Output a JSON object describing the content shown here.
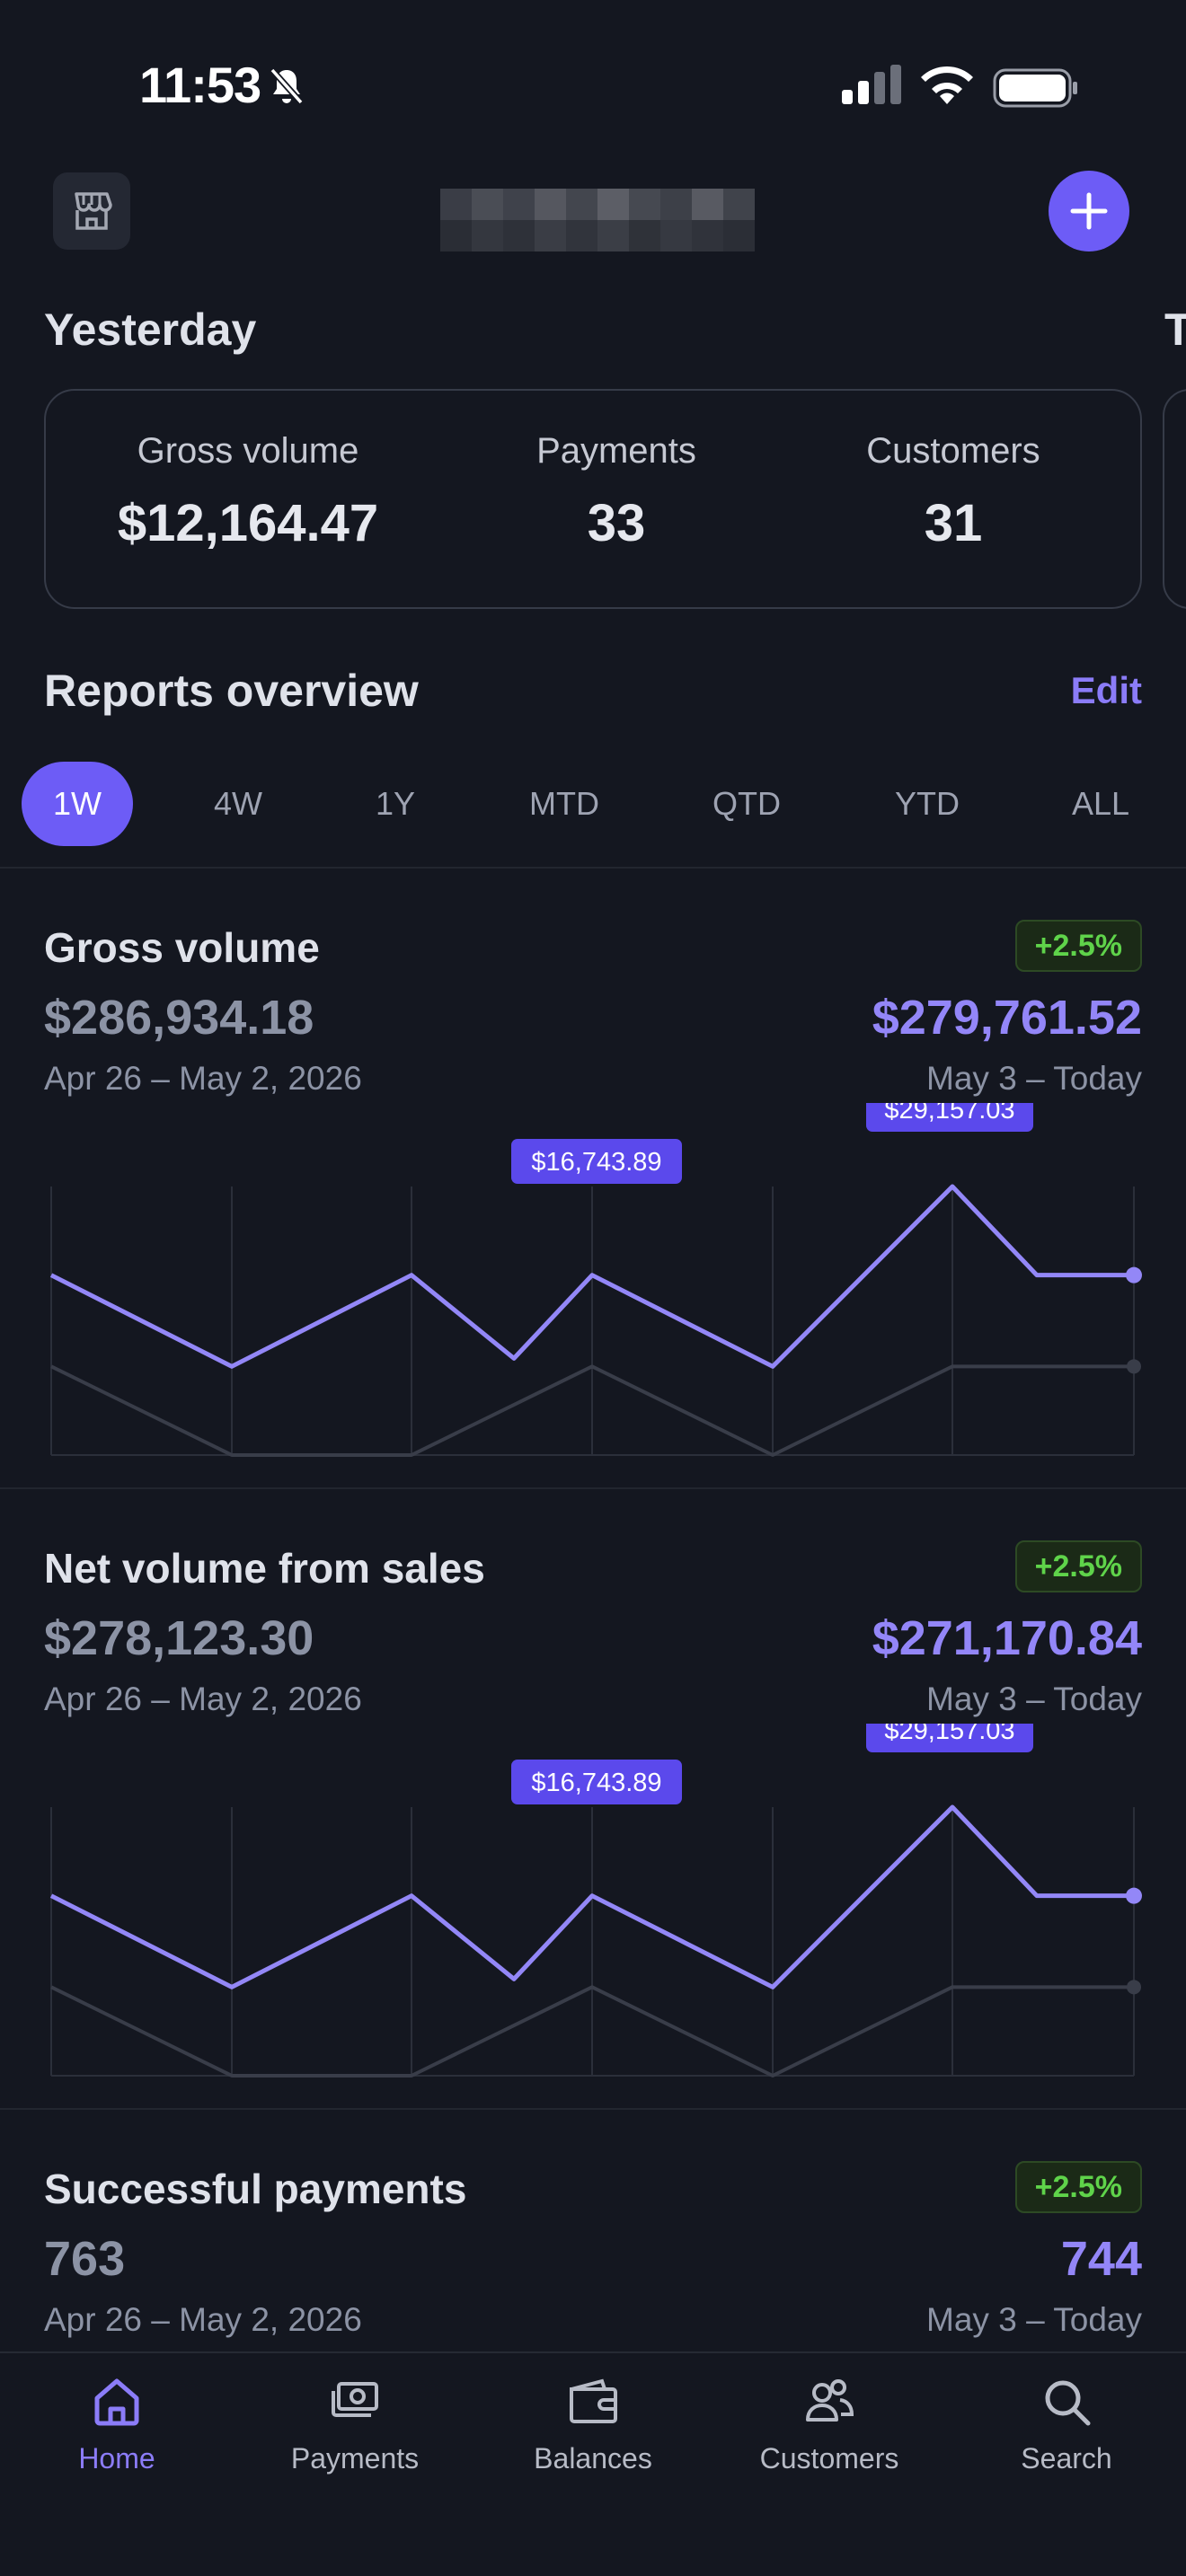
{
  "status_bar": {
    "time": "11:53",
    "icons": [
      "bell-slash-icon",
      "cellular-signal-icon",
      "wifi-icon",
      "battery-icon"
    ]
  },
  "header": {
    "store_icon": "storefront-icon",
    "add_icon": "plus-icon"
  },
  "yesterday": {
    "title": "Yesterday",
    "peek_title": "T",
    "stats": [
      {
        "label": "Gross volume",
        "value": "$12,164.47"
      },
      {
        "label": "Payments",
        "value": "33"
      },
      {
        "label": "Customers",
        "value": "31"
      }
    ]
  },
  "reports": {
    "title": "Reports overview",
    "edit_label": "Edit",
    "tabs": [
      {
        "label": "1W",
        "active": true
      },
      {
        "label": "4W",
        "active": false
      },
      {
        "label": "1Y",
        "active": false
      },
      {
        "label": "MTD",
        "active": false
      },
      {
        "label": "QTD",
        "active": false
      },
      {
        "label": "YTD",
        "active": false
      },
      {
        "label": "ALL",
        "active": false
      }
    ]
  },
  "metrics": [
    {
      "title": "Gross volume",
      "change": "+2.5%",
      "previous_value": "$286,934.18",
      "current_value": "$279,761.52",
      "previous_range": "Apr 26 – May 2, 2026",
      "current_range": "May 3 – Today"
    },
    {
      "title": "Net volume from sales",
      "change": "+2.5%",
      "previous_value": "$278,123.30",
      "current_value": "$271,170.84",
      "previous_range": "Apr 26 – May 2, 2026",
      "current_range": "May 3 – Today"
    },
    {
      "title": "Successful payments",
      "change": "+2.5%",
      "previous_value": "763",
      "current_value": "744",
      "previous_range": "Apr 26 – May 2, 2026",
      "current_range": "May 3 – Today"
    }
  ],
  "chart_data": [
    {
      "type": "line",
      "annotations": [
        "$16,743.89",
        "$29,157.03"
      ],
      "series": [
        {
          "values": [
            0.67,
            0.33,
            0.67,
            0.36,
            0.67,
            0.33,
            1.0,
            0.67,
            0.67
          ],
          "color": "#9387f7"
        },
        {
          "values": [
            0.33,
            0.0,
            0.0,
            0.33,
            0.0,
            0.33,
            0.33
          ],
          "color": "#393d49"
        }
      ],
      "grid": true
    },
    {
      "type": "line",
      "annotations": [
        "$16,743.89",
        "$29,157.03"
      ],
      "series": [
        {
          "values": [
            0.67,
            0.33,
            0.67,
            0.36,
            0.67,
            0.33,
            1.0,
            0.67,
            0.67
          ],
          "color": "#9387f7"
        },
        {
          "values": [
            0.33,
            0.0,
            0.0,
            0.33,
            0.0,
            0.33,
            0.33
          ],
          "color": "#393d49"
        }
      ],
      "grid": true
    }
  ],
  "tabbar": [
    {
      "label": "Home",
      "icon": "home-icon",
      "active": true
    },
    {
      "label": "Payments",
      "icon": "payments-icon",
      "active": false
    },
    {
      "label": "Balances",
      "icon": "wallet-icon",
      "active": false
    },
    {
      "label": "Customers",
      "icon": "customers-icon",
      "active": false
    },
    {
      "label": "Search",
      "icon": "search-icon",
      "active": false
    }
  ],
  "colors": {
    "background": "#141720",
    "accent": "#6d5cf6",
    "accent_text": "#8b7cf8",
    "positive": "#5fd34a"
  }
}
